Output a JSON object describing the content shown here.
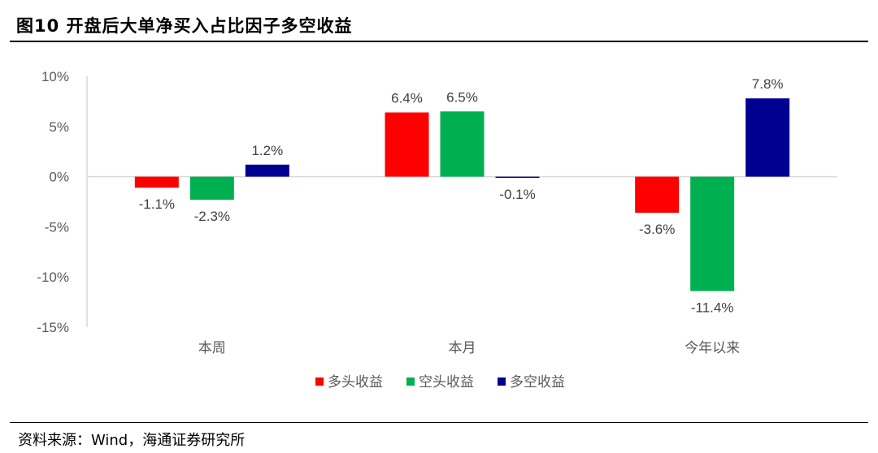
{
  "title": "图10 开盘后大单净买入占比因子多空收益",
  "source": "资料来源：Wind，海通证券研究所",
  "colors": {
    "long": "#FF0000",
    "longshort_green": "#00B050",
    "ls": "#000090",
    "axis": "#D9D9D9",
    "text": "#595959"
  },
  "chart_data": {
    "type": "bar",
    "categories": [
      "本周",
      "本月",
      "今年以来"
    ],
    "series": [
      {
        "name": "多头收益",
        "values": [
          -1.1,
          6.4,
          -3.6
        ],
        "labels": [
          "-1.1%",
          "6.4%",
          "-3.6%"
        ],
        "color": "#FF0000"
      },
      {
        "name": "空头收益",
        "values": [
          -2.3,
          6.5,
          -11.4
        ],
        "labels": [
          "-2.3%",
          "6.5%",
          "-11.4%"
        ],
        "color": "#00B050"
      },
      {
        "name": "多空收益",
        "values": [
          1.2,
          -0.1,
          7.8
        ],
        "labels": [
          "1.2%",
          "-0.1%",
          "7.8%"
        ],
        "color": "#000090"
      }
    ],
    "y_ticks": [
      "10%",
      "5%",
      "0%",
      "-5%",
      "-10%",
      "-15%"
    ],
    "ylim": [
      -15,
      10
    ],
    "legend_position": "bottom",
    "grid": false
  }
}
